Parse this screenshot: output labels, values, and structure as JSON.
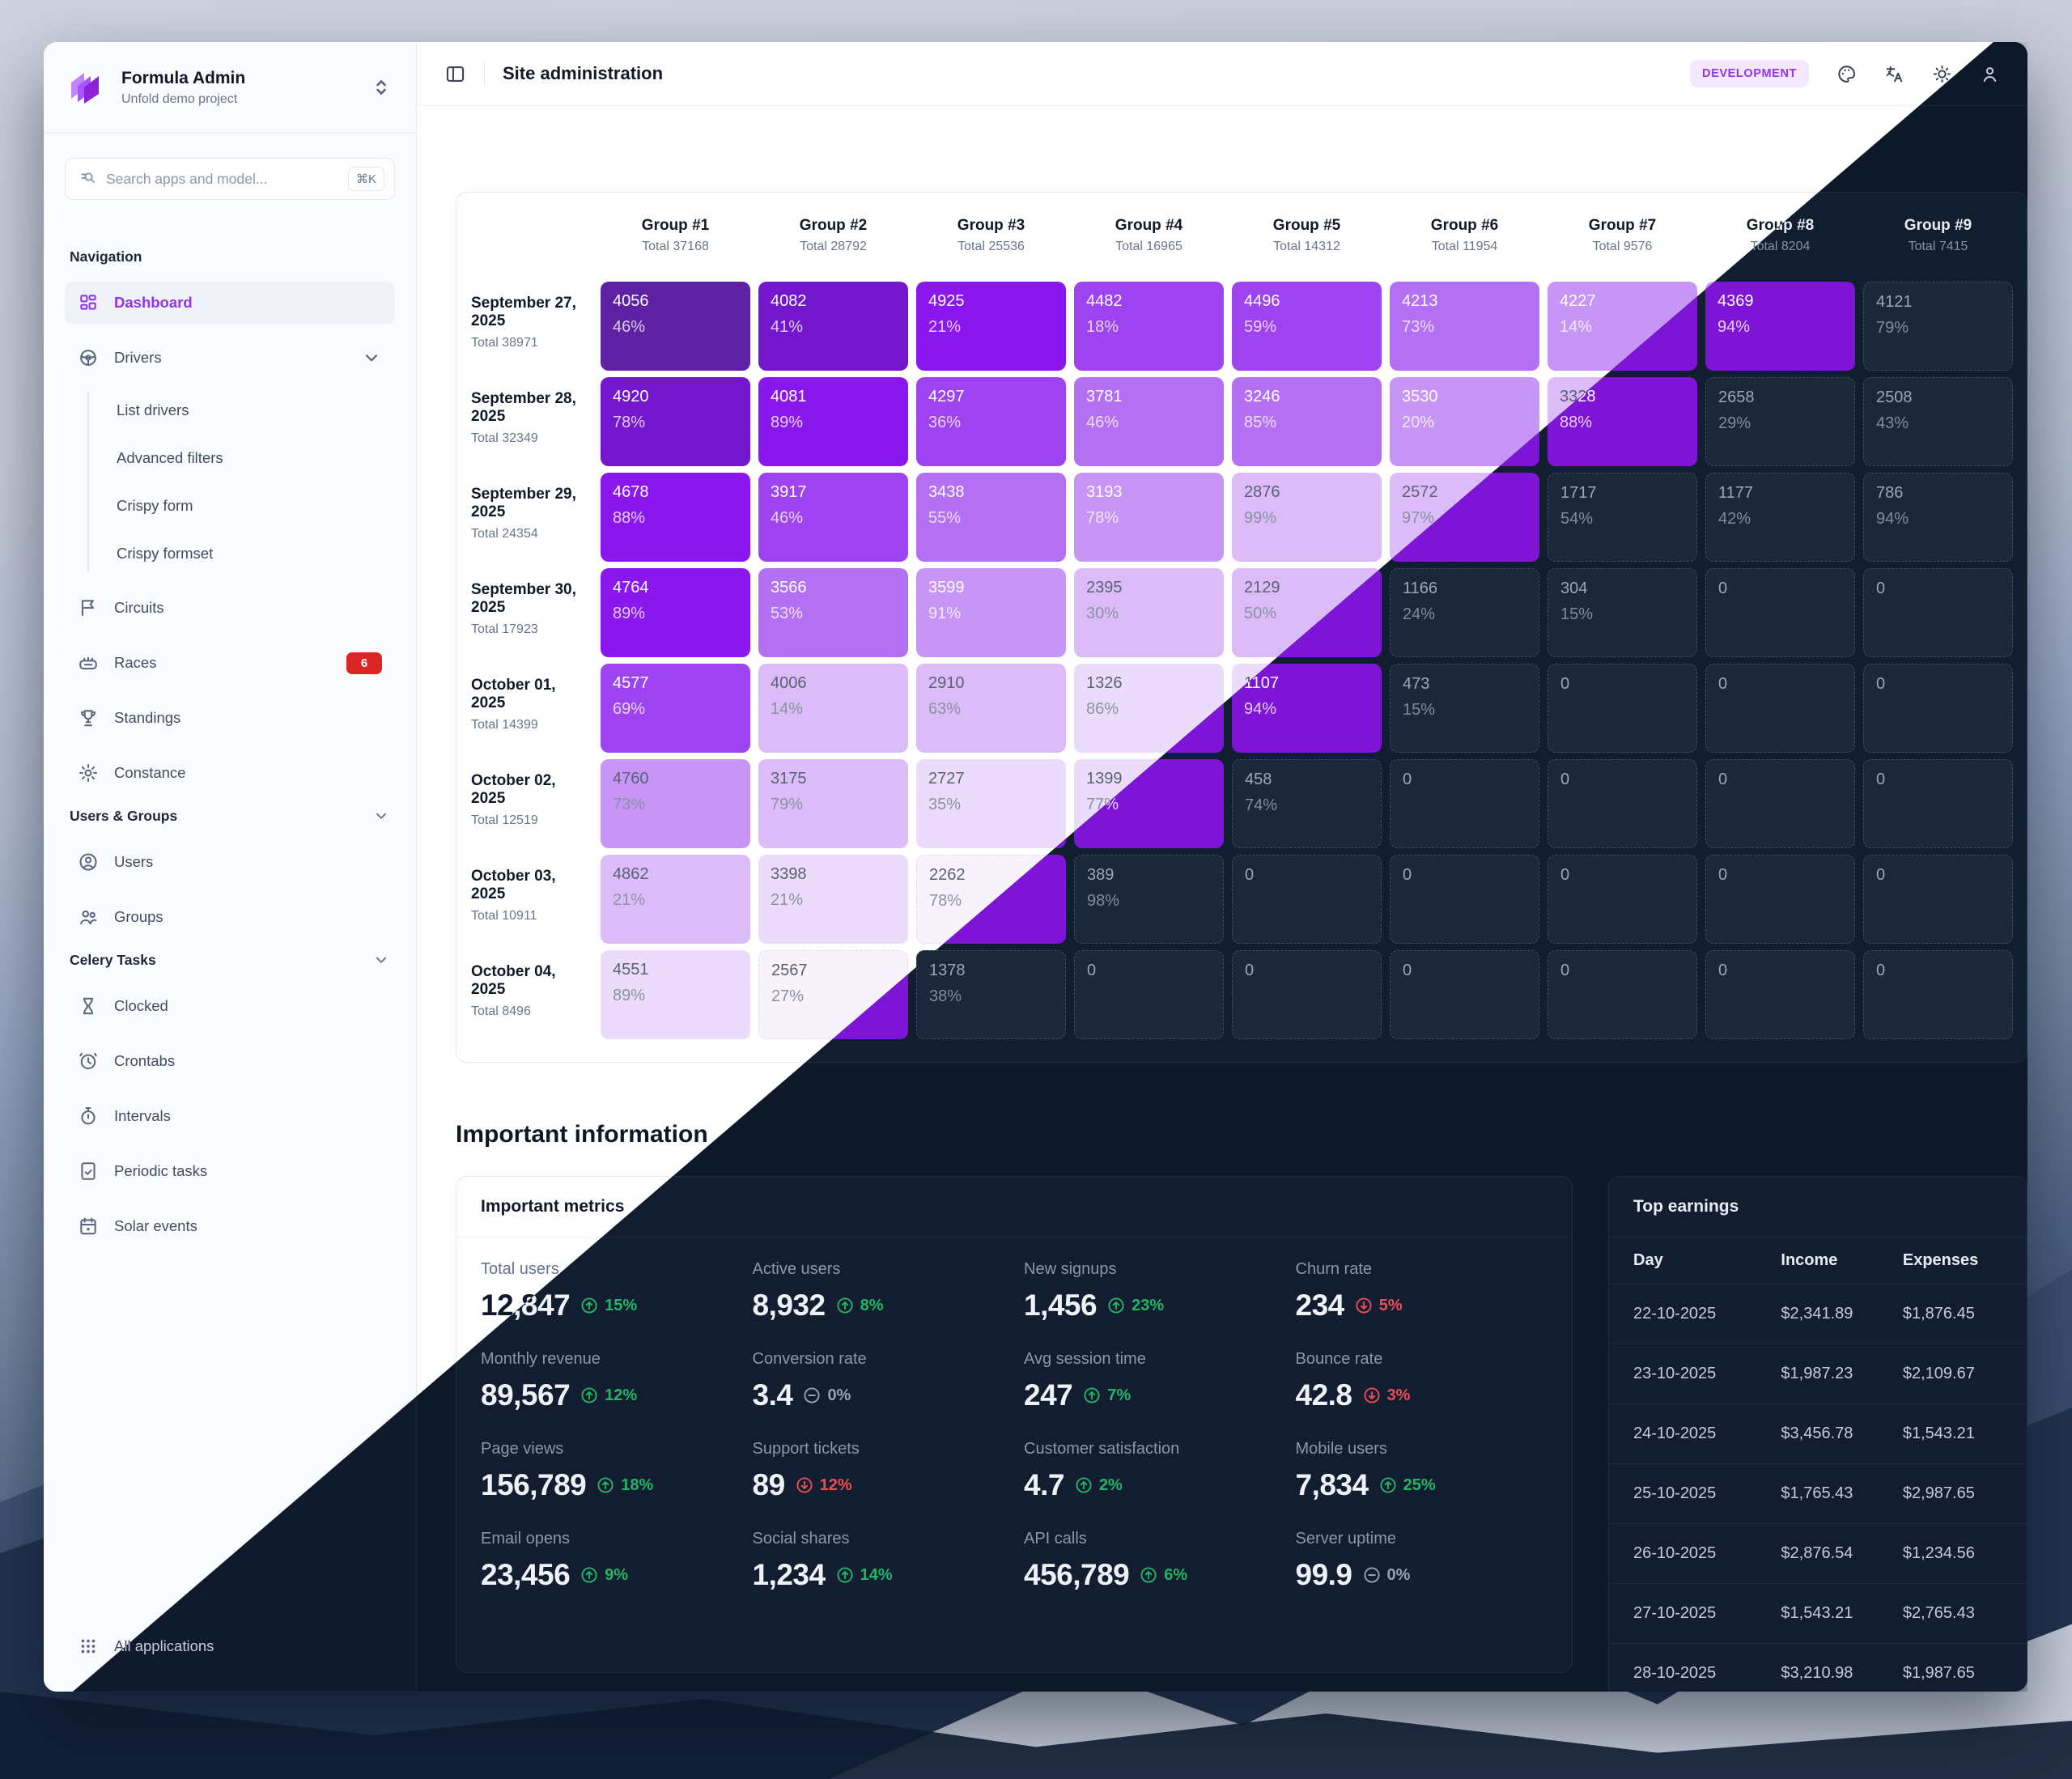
{
  "sidebar": {
    "brand": {
      "title": "Formula Admin",
      "subtitle": "Unfold demo project"
    },
    "search": {
      "placeholder": "Search apps and model...",
      "shortcut": "⌘K"
    },
    "sections": [
      {
        "label": "Navigation",
        "collapsible": false,
        "items": [
          {
            "label": "Dashboard",
            "icon": "dashboard-icon",
            "active": true
          },
          {
            "label": "Drivers",
            "icon": "steering-wheel-icon",
            "expanded": true,
            "children": [
              "List drivers",
              "Advanced filters",
              "Crispy form",
              "Crispy formset"
            ]
          },
          {
            "label": "Circuits",
            "icon": "flag-icon"
          },
          {
            "label": "Races",
            "icon": "stadium-icon",
            "badge": "6"
          },
          {
            "label": "Standings",
            "icon": "trophy-icon"
          },
          {
            "label": "Constance",
            "icon": "gear-icon"
          }
        ]
      },
      {
        "label": "Users & Groups",
        "collapsible": true,
        "items": [
          {
            "label": "Users",
            "icon": "user-circle-icon"
          },
          {
            "label": "Groups",
            "icon": "users-icon"
          }
        ]
      },
      {
        "label": "Celery Tasks",
        "collapsible": true,
        "items": [
          {
            "label": "Clocked",
            "icon": "hourglass-icon"
          },
          {
            "label": "Crontabs",
            "icon": "clock-arrow-icon"
          },
          {
            "label": "Intervals",
            "icon": "stopwatch-icon"
          },
          {
            "label": "Periodic tasks",
            "icon": "task-doc-icon"
          },
          {
            "label": "Solar events",
            "icon": "calendar-icon"
          }
        ]
      }
    ],
    "footer": {
      "label": "All applications",
      "icon": "apps-grid-icon"
    }
  },
  "header": {
    "title": "Site administration",
    "env_badge": "DEVELOPMENT",
    "action_icons": [
      "palette-icon",
      "translate-icon",
      "sun-icon",
      "user-icon"
    ]
  },
  "heatmap": {
    "groups": [
      {
        "name": "Group #1",
        "total": "Total 37168"
      },
      {
        "name": "Group #2",
        "total": "Total 28792"
      },
      {
        "name": "Group #3",
        "total": "Total 25536"
      },
      {
        "name": "Group #4",
        "total": "Total 16965"
      },
      {
        "name": "Group #5",
        "total": "Total 14312"
      },
      {
        "name": "Group #6",
        "total": "Total 11954"
      },
      {
        "name": "Group #7",
        "total": "Total 9576"
      },
      {
        "name": "Group #8",
        "total": "Total 8204"
      },
      {
        "name": "Group #9",
        "total": "Total 7415"
      }
    ],
    "rows": [
      {
        "date": "September 27, 2025",
        "total": "Total 38971",
        "cells": [
          {
            "v": "4056",
            "p": "46%",
            "c": 9
          },
          {
            "v": "4082",
            "p": "41%",
            "c": 8
          },
          {
            "v": "4925",
            "p": "21%",
            "c": 7
          },
          {
            "v": "4482",
            "p": "18%",
            "c": 6
          },
          {
            "v": "4496",
            "p": "59%",
            "c": 6
          },
          {
            "v": "4213",
            "p": "73%",
            "c": 5
          },
          {
            "v": "4227",
            "p": "14%",
            "c": 4,
            "w": true
          },
          {
            "v": "4369",
            "p": "94%",
            "c": 4
          },
          {
            "v": "4121",
            "p": "79%",
            "c": "e"
          }
        ]
      },
      {
        "date": "September 28, 2025",
        "total": "Total 32349",
        "cells": [
          {
            "v": "4920",
            "p": "78%",
            "c": 8
          },
          {
            "v": "4081",
            "p": "89%",
            "c": 7
          },
          {
            "v": "4297",
            "p": "36%",
            "c": 6
          },
          {
            "v": "3781",
            "p": "46%",
            "c": 5
          },
          {
            "v": "3246",
            "p": "85%",
            "c": 5
          },
          {
            "v": "3530",
            "p": "20%",
            "c": 4,
            "w": true
          },
          {
            "v": "3328",
            "p": "88%",
            "c": 3
          },
          {
            "v": "2658",
            "p": "29%",
            "c": "e"
          },
          {
            "v": "2508",
            "p": "43%",
            "c": "e"
          }
        ]
      },
      {
        "date": "September 29, 2025",
        "total": "Total 24354",
        "cells": [
          {
            "v": "4678",
            "p": "88%",
            "c": 7
          },
          {
            "v": "3917",
            "p": "46%",
            "c": 6
          },
          {
            "v": "3438",
            "p": "55%",
            "c": 5
          },
          {
            "v": "3193",
            "p": "78%",
            "c": 4,
            "w": true
          },
          {
            "v": "2876",
            "p": "99%",
            "c": 3
          },
          {
            "v": "2572",
            "p": "97%",
            "c": 3
          },
          {
            "v": "1717",
            "p": "54%",
            "c": "e"
          },
          {
            "v": "1177",
            "p": "42%",
            "c": "e"
          },
          {
            "v": "786",
            "p": "94%",
            "c": "e"
          }
        ]
      },
      {
        "date": "September 30, 2025",
        "total": "Total 17923",
        "cells": [
          {
            "v": "4764",
            "p": "89%",
            "c": 7
          },
          {
            "v": "3566",
            "p": "53%",
            "c": 5
          },
          {
            "v": "3599",
            "p": "91%",
            "c": 4,
            "w": true
          },
          {
            "v": "2395",
            "p": "30%",
            "c": 3
          },
          {
            "v": "2129",
            "p": "50%",
            "c": 3
          },
          {
            "v": "1166",
            "p": "24%",
            "c": "e"
          },
          {
            "v": "304",
            "p": "15%",
            "c": "e"
          },
          {
            "v": "0",
            "p": "",
            "c": "e"
          },
          {
            "v": "0",
            "p": "",
            "c": "e"
          }
        ]
      },
      {
        "date": "October 01, 2025",
        "total": "Total 14399",
        "cells": [
          {
            "v": "4577",
            "p": "69%",
            "c": 6
          },
          {
            "v": "4006",
            "p": "14%",
            "c": 3
          },
          {
            "v": "2910",
            "p": "63%",
            "c": 3
          },
          {
            "v": "1326",
            "p": "86%",
            "c": 2
          },
          {
            "v": "1107",
            "p": "94%",
            "c": 2
          },
          {
            "v": "473",
            "p": "15%",
            "c": "e"
          },
          {
            "v": "0",
            "p": "",
            "c": "e"
          },
          {
            "v": "0",
            "p": "",
            "c": "e"
          },
          {
            "v": "0",
            "p": "",
            "c": "e"
          }
        ]
      },
      {
        "date": "October 02, 2025",
        "total": "Total 12519",
        "cells": [
          {
            "v": "4760",
            "p": "73%",
            "c": 4
          },
          {
            "v": "3175",
            "p": "79%",
            "c": 3
          },
          {
            "v": "2727",
            "p": "35%",
            "c": 2
          },
          {
            "v": "1399",
            "p": "77%",
            "c": 2
          },
          {
            "v": "458",
            "p": "74%",
            "c": "e"
          },
          {
            "v": "0",
            "p": "",
            "c": "e"
          },
          {
            "v": "0",
            "p": "",
            "c": "e"
          },
          {
            "v": "0",
            "p": "",
            "c": "e"
          },
          {
            "v": "0",
            "p": "",
            "c": "e"
          }
        ]
      },
      {
        "date": "October 03, 2025",
        "total": "Total 10911",
        "cells": [
          {
            "v": "4862",
            "p": "21%",
            "c": 3
          },
          {
            "v": "3398",
            "p": "21%",
            "c": 2
          },
          {
            "v": "2262",
            "p": "78%",
            "c": 1
          },
          {
            "v": "389",
            "p": "98%",
            "c": "e"
          },
          {
            "v": "0",
            "p": "",
            "c": "e"
          },
          {
            "v": "0",
            "p": "",
            "c": "e"
          },
          {
            "v": "0",
            "p": "",
            "c": "e"
          },
          {
            "v": "0",
            "p": "",
            "c": "e"
          },
          {
            "v": "0",
            "p": "",
            "c": "e"
          }
        ]
      },
      {
        "date": "October 04, 2025",
        "total": "Total 8496",
        "cells": [
          {
            "v": "4551",
            "p": "89%",
            "c": 2
          },
          {
            "v": "2567",
            "p": "27%",
            "c": 1
          },
          {
            "v": "1378",
            "p": "38%",
            "c": "e"
          },
          {
            "v": "0",
            "p": "",
            "c": "e"
          },
          {
            "v": "0",
            "p": "",
            "c": "e"
          },
          {
            "v": "0",
            "p": "",
            "c": "e"
          },
          {
            "v": "0",
            "p": "",
            "c": "e"
          },
          {
            "v": "0",
            "p": "",
            "c": "e"
          },
          {
            "v": "0",
            "p": "",
            "c": "e"
          }
        ]
      }
    ]
  },
  "important": {
    "heading": "Important information",
    "metrics_card": {
      "title": "Important metrics",
      "items": [
        {
          "label": "Total users",
          "value": "12,847",
          "delta": "15%",
          "trend": "up"
        },
        {
          "label": "Active users",
          "value": "8,932",
          "delta": "8%",
          "trend": "up"
        },
        {
          "label": "New signups",
          "value": "1,456",
          "delta": "23%",
          "trend": "up"
        },
        {
          "label": "Churn rate",
          "value": "234",
          "delta": "5%",
          "trend": "down"
        },
        {
          "label": "Monthly revenue",
          "value": "89,567",
          "delta": "12%",
          "trend": "up"
        },
        {
          "label": "Conversion rate",
          "value": "3.4",
          "delta": "0%",
          "trend": "flat"
        },
        {
          "label": "Avg session time",
          "value": "247",
          "delta": "7%",
          "trend": "up"
        },
        {
          "label": "Bounce rate",
          "value": "42.8",
          "delta": "3%",
          "trend": "down"
        },
        {
          "label": "Page views",
          "value": "156,789",
          "delta": "18%",
          "trend": "up"
        },
        {
          "label": "Support tickets",
          "value": "89",
          "delta": "12%",
          "trend": "down"
        },
        {
          "label": "Customer satisfaction",
          "value": "4.7",
          "delta": "2%",
          "trend": "up"
        },
        {
          "label": "Mobile users",
          "value": "7,834",
          "delta": "25%",
          "trend": "up"
        },
        {
          "label": "Email opens",
          "value": "23,456",
          "delta": "9%",
          "trend": "up"
        },
        {
          "label": "Social shares",
          "value": "1,234",
          "delta": "14%",
          "trend": "up"
        },
        {
          "label": "API calls",
          "value": "456,789",
          "delta": "6%",
          "trend": "up"
        },
        {
          "label": "Server uptime",
          "value": "99.9",
          "delta": "0%",
          "trend": "flat"
        }
      ]
    },
    "earnings_card": {
      "title": "Top earnings",
      "columns": [
        "Day",
        "Income",
        "Expenses"
      ],
      "rows": [
        [
          "22-10-2025",
          "$2,341.89",
          "$1,876.45"
        ],
        [
          "23-10-2025",
          "$1,987.23",
          "$2,109.67"
        ],
        [
          "24-10-2025",
          "$3,456.78",
          "$1,543.21"
        ],
        [
          "25-10-2025",
          "$1,765.43",
          "$2,987.65"
        ],
        [
          "26-10-2025",
          "$2,876.54",
          "$1,234.56"
        ],
        [
          "27-10-2025",
          "$1,543.21",
          "$2,765.43"
        ],
        [
          "28-10-2025",
          "$3,210.98",
          "$1,987.65"
        ]
      ]
    }
  },
  "theme": {
    "accent": "#9333ea",
    "badge_bg": "#f3e8ff",
    "green": "#22b567",
    "red": "#ee4d55",
    "neutral": "#94a3b8",
    "races_badge": "#dc2626",
    "heat_levels_light": [
      "#ffffff",
      "#f8f2fd",
      "#ecdcfb",
      "#dcbbf9",
      "#c795f6",
      "#b370f3",
      "#9d43f0",
      "#8a18ee",
      "#7217cd",
      "#5e21a4"
    ],
    "heat_dark_fill": "#7e15d6",
    "heat_empty_bg": "#1c2839"
  }
}
